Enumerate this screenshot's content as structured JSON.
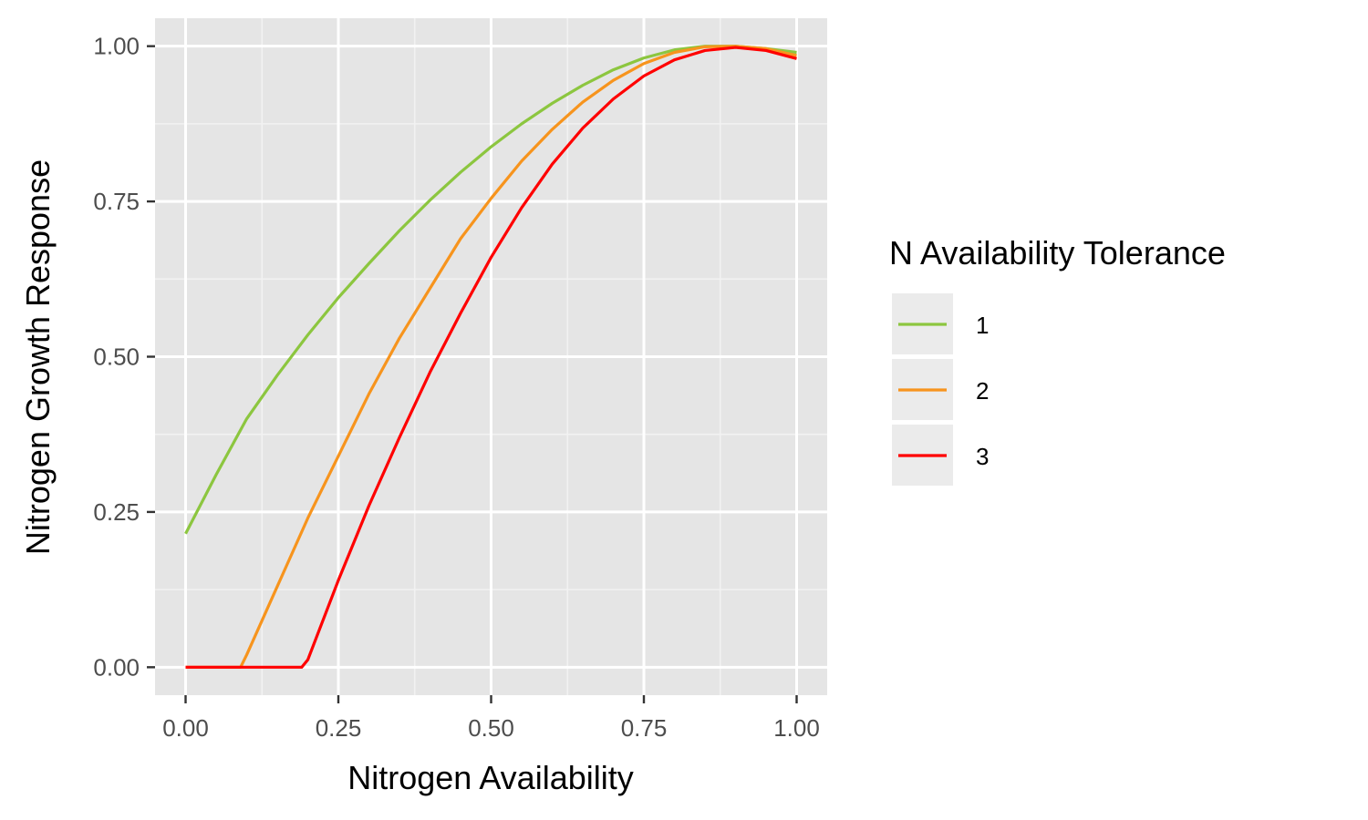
{
  "chart_data": {
    "type": "line",
    "xlabel": "Nitrogen Availability",
    "ylabel": "Nitrogen Growth Response",
    "xlim": [
      -0.05,
      1.05
    ],
    "ylim": [
      -0.045,
      1.045
    ],
    "x_ticks": [
      0,
      0.25,
      0.5,
      0.75,
      1
    ],
    "x_tick_labels": [
      "0.00",
      "0.25",
      "0.50",
      "0.75",
      "1.00"
    ],
    "y_ticks": [
      0,
      0.25,
      0.5,
      0.75,
      1
    ],
    "y_tick_labels": [
      "0.00",
      "0.25",
      "0.50",
      "0.75",
      "1.00"
    ],
    "grid": true,
    "panel_background": "#e5e5e5",
    "legend": {
      "title": "N Availability Tolerance",
      "position": "right"
    },
    "series": [
      {
        "name": "1",
        "color": "#8cc63f",
        "x": [
          0,
          0.05,
          0.1,
          0.15,
          0.2,
          0.25,
          0.3,
          0.35,
          0.4,
          0.45,
          0.5,
          0.55,
          0.6,
          0.65,
          0.7,
          0.75,
          0.8,
          0.85,
          0.9,
          0.95,
          1
        ],
        "y": [
          0.215,
          0.31,
          0.4,
          0.47,
          0.535,
          0.595,
          0.65,
          0.703,
          0.752,
          0.797,
          0.838,
          0.875,
          0.908,
          0.937,
          0.962,
          0.981,
          0.994,
          1.0,
          1.0,
          0.996,
          0.99
        ]
      },
      {
        "name": "2",
        "color": "#f7941d",
        "x": [
          0,
          0.05,
          0.09,
          0.1,
          0.15,
          0.2,
          0.25,
          0.3,
          0.35,
          0.4,
          0.45,
          0.5,
          0.55,
          0.6,
          0.65,
          0.7,
          0.75,
          0.8,
          0.85,
          0.9,
          0.95,
          1
        ],
        "y": [
          0,
          0,
          0,
          0.02,
          0.13,
          0.24,
          0.34,
          0.44,
          0.53,
          0.61,
          0.69,
          0.755,
          0.815,
          0.866,
          0.91,
          0.945,
          0.972,
          0.99,
          0.999,
          1.0,
          0.996,
          0.985
        ]
      },
      {
        "name": "3",
        "color": "#ff0000",
        "x": [
          0,
          0.05,
          0.1,
          0.15,
          0.19,
          0.2,
          0.25,
          0.3,
          0.35,
          0.4,
          0.45,
          0.5,
          0.55,
          0.6,
          0.65,
          0.7,
          0.75,
          0.8,
          0.85,
          0.9,
          0.95,
          1
        ],
        "y": [
          0,
          0,
          0,
          0,
          0,
          0.012,
          0.14,
          0.26,
          0.37,
          0.475,
          0.57,
          0.66,
          0.74,
          0.81,
          0.868,
          0.915,
          0.952,
          0.978,
          0.993,
          0.998,
          0.993,
          0.98
        ]
      }
    ]
  }
}
